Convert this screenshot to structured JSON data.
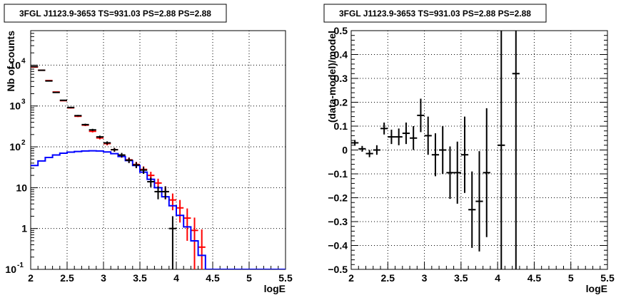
{
  "chart_data": [
    {
      "type": "scatter",
      "title": "3FGL J1123.9-3653 TS=931.03 PS=2.88 PS=2.88",
      "xlabel": "logE",
      "ylabel": "Nb of counts",
      "xlim": [
        2,
        5.5
      ],
      "ylim": [
        0.1,
        70000
      ],
      "yscale": "log",
      "grid": true,
      "xticks": [
        "2",
        "2.5",
        "3",
        "3.5",
        "4",
        "4.5",
        "5",
        "5.5"
      ],
      "yticks": [
        {
          "value": 0.1,
          "label": "10^-1"
        },
        {
          "value": 1,
          "label": "1"
        },
        {
          "value": 10,
          "label": "10"
        },
        {
          "value": 100,
          "label": "10^2"
        },
        {
          "value": 1000,
          "label": "10^3"
        },
        {
          "value": 10000,
          "label": "10^4"
        }
      ],
      "series": [
        {
          "color": "#ff0000",
          "kind": "steps-with-errors",
          "x": [
            2.05,
            2.15,
            2.25,
            2.35,
            2.45,
            2.55,
            2.65,
            2.75,
            2.85,
            2.95,
            3.05,
            3.15,
            3.25,
            3.35,
            3.45,
            3.55,
            3.65,
            3.75,
            3.85,
            3.95,
            4.05,
            4.15,
            4.25,
            4.35
          ],
          "values": [
            9000,
            7500,
            4200,
            2200,
            1350,
            900,
            560,
            340,
            240,
            165,
            120,
            85,
            62,
            48,
            37,
            28,
            20,
            13,
            8,
            5,
            3.2,
            1.8,
            0.9,
            0.35
          ],
          "err": [
            95,
            85,
            65,
            47,
            37,
            30,
            24,
            18,
            15,
            13,
            11,
            9,
            8,
            7,
            6,
            5.3,
            4.5,
            3.6,
            2.8,
            2.2,
            1.8,
            1.3,
            0.95,
            0.6
          ]
        },
        {
          "color": "#0000ff",
          "kind": "model-steps",
          "x": [
            2.05,
            2.15,
            2.25,
            2.35,
            2.45,
            2.55,
            2.65,
            2.75,
            2.85,
            2.95,
            3.05,
            3.15,
            3.25,
            3.35,
            3.45,
            3.55,
            3.65,
            3.75,
            3.85,
            3.95,
            4.05,
            4.15,
            4.25,
            4.35,
            4.45,
            4.55,
            4.65,
            4.75,
            4.85,
            4.95,
            5.05,
            5.15,
            5.25,
            5.35,
            5.45
          ],
          "values": [
            35,
            45,
            55,
            63,
            70,
            74,
            77,
            79,
            80,
            79,
            75,
            68,
            58,
            46,
            35,
            24,
            16,
            10,
            6,
            3.6,
            2.1,
            1.1,
            0.5,
            0.22,
            0.1,
            0.1,
            0.1,
            0.1,
            0.1,
            0.1,
            0.1,
            0.1,
            0.1,
            0.1,
            0.1
          ]
        },
        {
          "color": "#000000",
          "kind": "data-points",
          "x": [
            2.05,
            2.15,
            2.25,
            2.35,
            2.45,
            2.55,
            2.65,
            2.75,
            2.85,
            2.95,
            3.05,
            3.15,
            3.25,
            3.35,
            3.45,
            3.55,
            3.65,
            3.75,
            3.85,
            3.95
          ],
          "values": [
            9200,
            7500,
            4100,
            2150,
            1380,
            920,
            580,
            350,
            260,
            175,
            125,
            85,
            63,
            47,
            36,
            27,
            14,
            8,
            8,
            1
          ],
          "err": [
            96,
            86,
            64,
            46,
            37,
            30,
            24,
            19,
            16,
            13,
            11,
            9,
            8,
            7,
            6,
            5.2,
            3.7,
            2.8,
            2.8,
            1
          ]
        }
      ]
    },
    {
      "type": "scatter",
      "title": "3FGL J1123.9-3653 TS=931.03 PS=2.88 PS=2.88",
      "xlabel": "logE",
      "ylabel": "(data-model)/model",
      "xlim": [
        2,
        5.5
      ],
      "ylim": [
        -0.5,
        0.5
      ],
      "grid": true,
      "xticks": [
        "2",
        "2.5",
        "3",
        "3.5",
        "4",
        "4.5",
        "5",
        "5.5"
      ],
      "yticks": [
        "−0.5",
        "−0.4",
        "−0.3",
        "−0.2",
        "−0.1",
        "0",
        "0.1",
        "0.2",
        "0.3",
        "0.4",
        "0.5"
      ],
      "series": [
        {
          "color": "#000000",
          "x": [
            2.05,
            2.15,
            2.25,
            2.35,
            2.45,
            2.55,
            2.65,
            2.75,
            2.85,
            2.95,
            3.05,
            3.15,
            3.25,
            3.35,
            3.45,
            3.55,
            3.65,
            3.75,
            3.85,
            4.05,
            4.25
          ],
          "values": [
            0.03,
            0.005,
            -0.015,
            0.0,
            0.09,
            0.055,
            0.055,
            0.07,
            0.05,
            0.145,
            0.06,
            -0.02,
            0.0,
            -0.095,
            -0.095,
            -0.02,
            -0.25,
            -0.215,
            -0.095,
            0.02,
            0.32
          ],
          "err": [
            0.012,
            0.012,
            0.015,
            0.02,
            0.025,
            0.03,
            0.035,
            0.045,
            0.05,
            0.07,
            0.08,
            0.09,
            0.1,
            0.11,
            0.13,
            0.16,
            0.16,
            0.21,
            0.27,
            1.0,
            1.0
          ]
        }
      ]
    }
  ]
}
